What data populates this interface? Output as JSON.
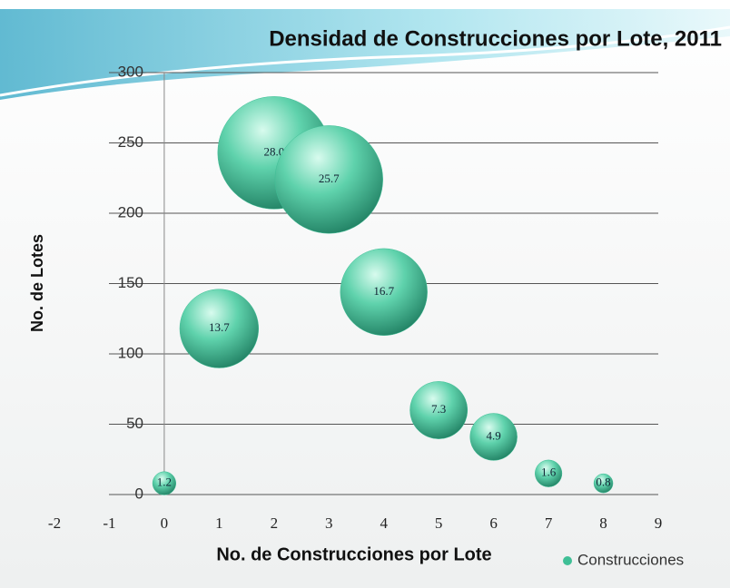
{
  "chart_data": {
    "type": "bubble",
    "title": "Densidad de Construcciones por Lote, 2011",
    "x_label": "No. de Construcciones por Lote",
    "y_label": "No. de Lotes",
    "xlim": [
      -2,
      9
    ],
    "xticks": [
      -2,
      -1,
      0,
      1,
      2,
      3,
      4,
      5,
      6,
      7,
      8,
      9
    ],
    "ylim": [
      0,
      300
    ],
    "yticks": [
      0,
      50,
      100,
      150,
      200,
      250,
      300
    ],
    "grid": true,
    "legend": "bottom-right",
    "series": [
      {
        "name": "Construcciones",
        "color": "#3fbf96",
        "x": [
          0,
          1,
          2,
          3,
          4,
          5,
          6,
          7,
          8
        ],
        "y": [
          8,
          118,
          243,
          224,
          144,
          60,
          41,
          15,
          8
        ],
        "sizes": [
          1.2,
          13.7,
          28.0,
          25.7,
          16.7,
          7.3,
          4.9,
          1.6,
          0.8
        ],
        "value_labels": [
          "1.2",
          "13.7",
          "28.0",
          "25.7",
          "16.7",
          "7.3",
          "4.9",
          "1.6",
          "0.8"
        ]
      }
    ]
  }
}
